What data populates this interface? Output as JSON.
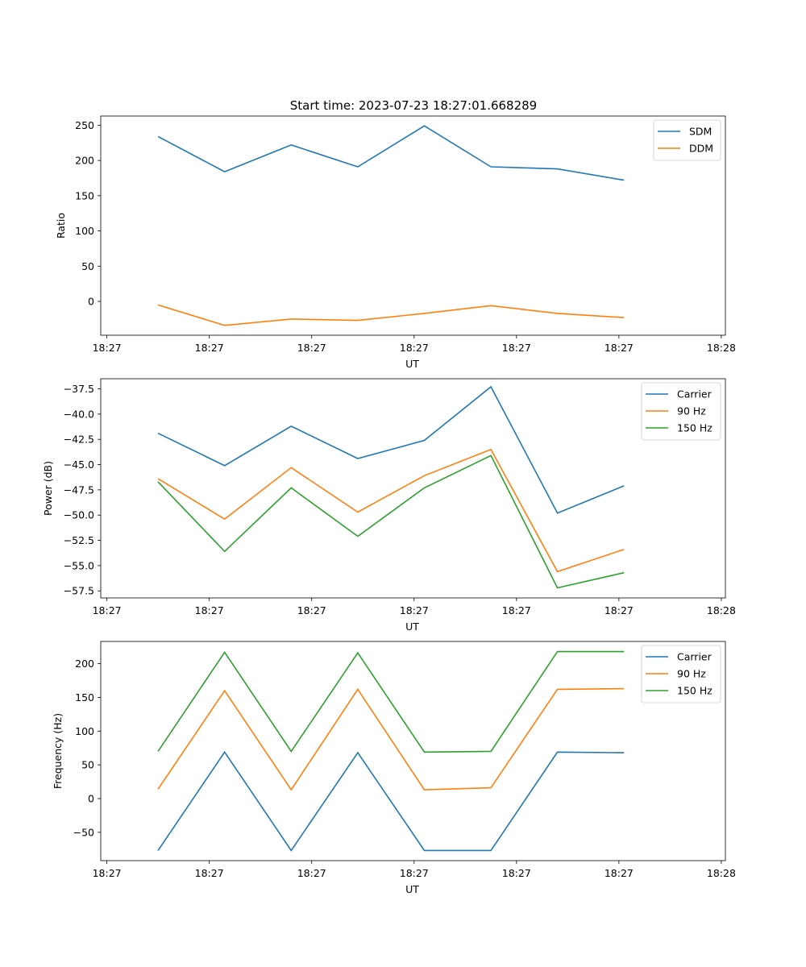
{
  "figure_title": "Start time: 2023-07-23 18:27:01.668289",
  "chart_data": [
    {
      "type": "line",
      "xlabel": "UT",
      "ylabel": "Ratio",
      "x_tick_labels": [
        "18:27",
        "18:27",
        "18:27",
        "18:27",
        "18:27",
        "18:27",
        "18:28"
      ],
      "x_ticks": [
        0,
        1,
        2,
        3,
        4,
        5,
        6
      ],
      "xlim": [
        -0.06,
        6.04
      ],
      "x": [
        0.5,
        1.15,
        1.8,
        2.45,
        3.1,
        3.75,
        4.4,
        5.05
      ],
      "ylim": [
        -48,
        263
      ],
      "y_ticks": [
        0,
        50,
        100,
        150,
        200,
        250
      ],
      "legend": "top-right",
      "series": [
        {
          "name": "SDM",
          "color": "#1f77b4",
          "values": [
            234,
            184,
            222,
            191,
            249,
            191,
            188,
            172
          ]
        },
        {
          "name": "DDM",
          "color": "#ff7f0e",
          "values": [
            -5,
            -34,
            -25,
            -27,
            -17,
            -6,
            -17,
            -23
          ]
        }
      ]
    },
    {
      "type": "line",
      "xlabel": "UT",
      "ylabel": "Power (dB)",
      "x_tick_labels": [
        "18:27",
        "18:27",
        "18:27",
        "18:27",
        "18:27",
        "18:27",
        "18:28"
      ],
      "x_ticks": [
        0,
        1,
        2,
        3,
        4,
        5,
        6
      ],
      "xlim": [
        -0.06,
        6.04
      ],
      "x": [
        0.5,
        1.15,
        1.8,
        2.45,
        3.1,
        3.75,
        4.4,
        5.05
      ],
      "ylim": [
        -58.2,
        -36.5
      ],
      "y_ticks": [
        -57.5,
        -55.0,
        -52.5,
        -50.0,
        -47.5,
        -45.0,
        -42.5,
        -40.0,
        -37.5
      ],
      "y_tick_labels": [
        "−57.5",
        "−55.0",
        "−52.5",
        "−50.0",
        "−47.5",
        "−45.0",
        "−42.5",
        "−40.0",
        "−37.5"
      ],
      "legend": "top-right",
      "series": [
        {
          "name": "Carrier",
          "color": "#1f77b4",
          "values": [
            -41.9,
            -45.1,
            -41.2,
            -44.4,
            -42.6,
            -37.3,
            -49.8,
            -47.1
          ]
        },
        {
          "name": "90 Hz",
          "color": "#ff7f0e",
          "values": [
            -46.4,
            -50.4,
            -45.3,
            -49.7,
            -46.1,
            -43.5,
            -55.6,
            -53.4
          ]
        },
        {
          "name": "150 Hz",
          "color": "#2ca02c",
          "values": [
            -46.7,
            -53.6,
            -47.3,
            -52.1,
            -47.3,
            -44.1,
            -57.2,
            -55.7
          ]
        }
      ]
    },
    {
      "type": "line",
      "xlabel": "UT",
      "ylabel": "Frequency (Hz)",
      "x_tick_labels": [
        "18:27",
        "18:27",
        "18:27",
        "18:27",
        "18:27",
        "18:27",
        "18:28"
      ],
      "x_ticks": [
        0,
        1,
        2,
        3,
        4,
        5,
        6
      ],
      "xlim": [
        -0.06,
        6.04
      ],
      "x": [
        0.5,
        1.15,
        1.8,
        2.45,
        3.1,
        3.75,
        4.4,
        5.05
      ],
      "ylim": [
        -92,
        233
      ],
      "y_ticks": [
        -50,
        0,
        50,
        100,
        150,
        200
      ],
      "y_tick_labels": [
        "−50",
        "0",
        "50",
        "100",
        "150",
        "200"
      ],
      "legend": "top-right",
      "series": [
        {
          "name": "Carrier",
          "color": "#1f77b4",
          "values": [
            -77,
            69,
            -77,
            68,
            -77,
            -77,
            69,
            68
          ]
        },
        {
          "name": "90 Hz",
          "color": "#ff7f0e",
          "values": [
            14,
            160,
            13,
            162,
            13,
            16,
            162,
            163
          ]
        },
        {
          "name": "150 Hz",
          "color": "#2ca02c",
          "values": [
            70,
            217,
            70,
            216,
            69,
            70,
            218,
            218
          ]
        }
      ]
    }
  ]
}
